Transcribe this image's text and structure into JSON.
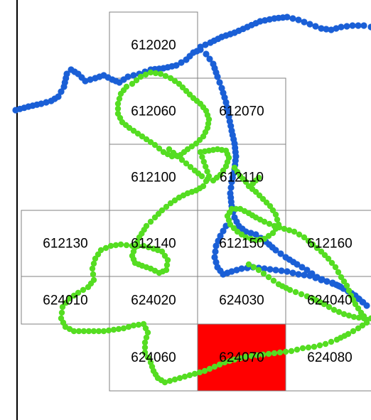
{
  "colors": {
    "grid_line": "#808080",
    "highlight_fill": "#ff0000",
    "river_dots": "#1a5fd6",
    "route_dots": "#55dd22",
    "background": "#ffffff",
    "frame_line": "#000000"
  },
  "grid_cells": [
    {
      "code": "612020",
      "highlighted": false
    },
    {
      "code": "612060",
      "highlighted": false
    },
    {
      "code": "612070",
      "highlighted": false
    },
    {
      "code": "612100",
      "highlighted": false
    },
    {
      "code": "612110",
      "highlighted": false
    },
    {
      "code": "612130",
      "highlighted": false
    },
    {
      "code": "612140",
      "highlighted": false
    },
    {
      "code": "612150",
      "highlighted": false
    },
    {
      "code": "612160",
      "highlighted": false
    },
    {
      "code": "624010",
      "highlighted": false
    },
    {
      "code": "624020",
      "highlighted": false
    },
    {
      "code": "624030",
      "highlighted": false
    },
    {
      "code": "624040",
      "highlighted": false
    },
    {
      "code": "624060",
      "highlighted": false
    },
    {
      "code": "624070",
      "highlighted": true
    },
    {
      "code": "624080",
      "highlighted": false
    }
  ],
  "tracks": [
    {
      "id": "river",
      "color": "#1a5fd6",
      "icon": "blue-dot-trail"
    },
    {
      "id": "route",
      "color": "#55dd22",
      "icon": "green-dot-trail"
    }
  ]
}
